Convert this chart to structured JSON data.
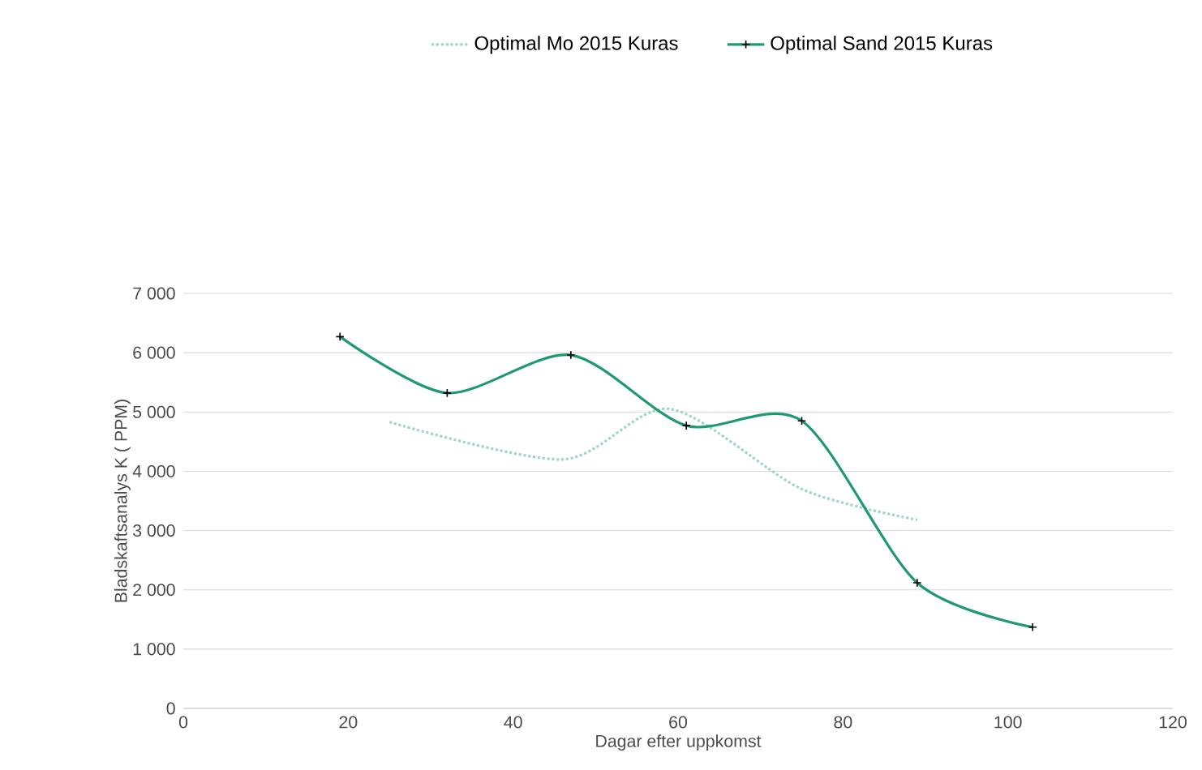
{
  "chart_data": {
    "type": "line",
    "xlabel": "Dagar efter uppkomst",
    "ylabel": "Bladskaftsanalys K ( PPM)",
    "xlim": [
      0,
      120
    ],
    "xticks": [
      0,
      20,
      40,
      60,
      80,
      100,
      120
    ],
    "ylim": [
      0,
      7000
    ],
    "yticks": [
      0,
      {
        "value": 1000,
        "label": "1 000"
      },
      {
        "value": 2000,
        "label": "2 000"
      },
      {
        "value": 3000,
        "label": "3 000"
      },
      {
        "value": 4000,
        "label": "4 000"
      },
      {
        "value": 5000,
        "label": "5 000"
      },
      {
        "value": 6000,
        "label": "6 000"
      },
      {
        "value": 7000,
        "label": "7 000"
      }
    ],
    "grid": "y",
    "legend": "top",
    "series": [
      {
        "name": "Optimal Mo 2015 Kuras",
        "color": "#9fd8bd",
        "line_style": "dotted",
        "marker": "none",
        "x": [
          25,
          46,
          59,
          75,
          89
        ],
        "values": [
          4830,
          4200,
          5050,
          3700,
          3180
        ]
      },
      {
        "name": "Optimal Sand 2015 Kuras",
        "color": "#1f9a6e",
        "line_style": "solid",
        "marker": "cross",
        "x": [
          19,
          32,
          47,
          61,
          75,
          89,
          103
        ],
        "values": [
          6270,
          5320,
          5960,
          4770,
          4850,
          2120,
          1370
        ]
      }
    ]
  }
}
